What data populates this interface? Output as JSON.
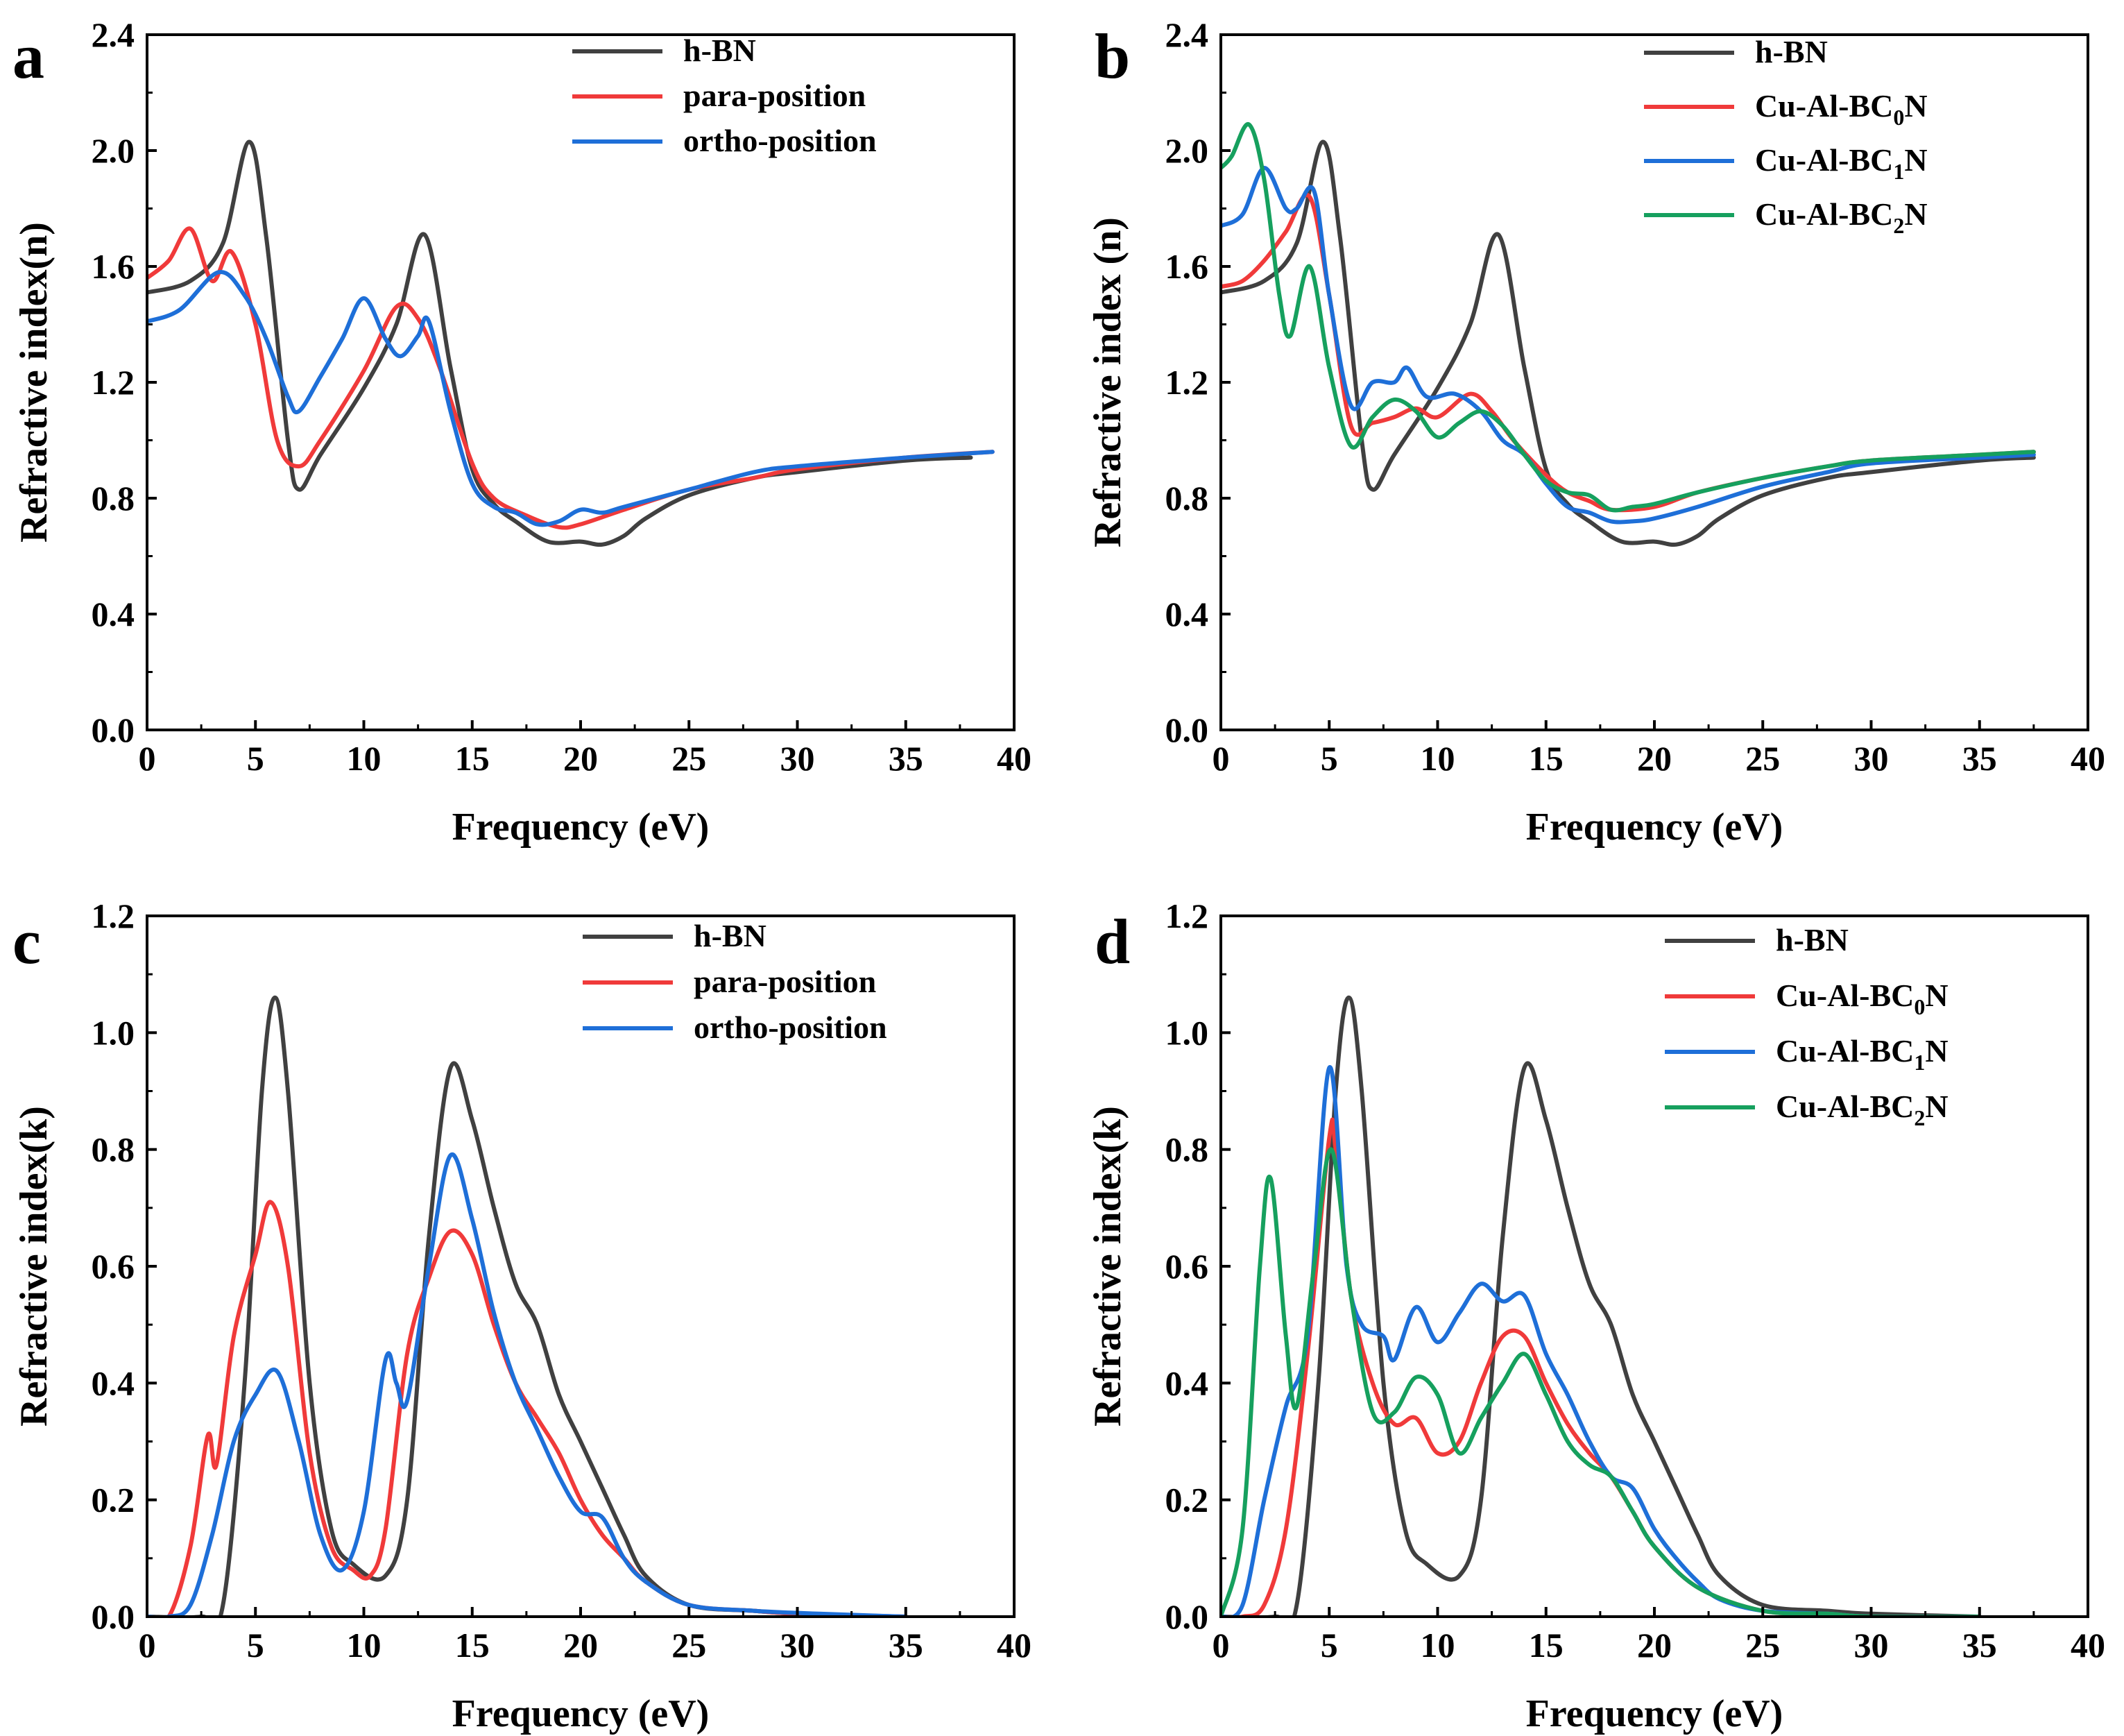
{
  "colors": {
    "hbn": "#404040",
    "red": "#f03a3a",
    "blue": "#1e6fd8",
    "green": "#16a05e"
  },
  "chart_data": [
    {
      "panel": "a",
      "type": "line",
      "xlabel": "Frequency (eV)",
      "ylabel": "Refractive index(n)",
      "xlim": [
        0,
        40
      ],
      "ylim": [
        0,
        2.4
      ],
      "xticks": [
        0,
        5,
        10,
        15,
        20,
        25,
        30,
        35,
        40
      ],
      "yticks": [
        0.0,
        0.4,
        0.8,
        1.2,
        1.6,
        2.0,
        2.4
      ],
      "ytick_labels": [
        "0.0",
        "0.4",
        "0.8",
        "1.2",
        "1.6",
        "2.0",
        "2.4"
      ],
      "legend_position": "top-right",
      "series": [
        {
          "name": "h-BN",
          "color": "#404040",
          "x": [
            0,
            2,
            3.5,
            4.7,
            5.5,
            6.5,
            7,
            8,
            10,
            11.5,
            12.8,
            14,
            15,
            16,
            17,
            18.5,
            20,
            21,
            22,
            23,
            25,
            28,
            30,
            35,
            38
          ],
          "y": [
            1.51,
            1.55,
            1.68,
            2.03,
            1.7,
            1.0,
            0.83,
            0.95,
            1.18,
            1.4,
            1.71,
            1.25,
            0.9,
            0.78,
            0.72,
            0.65,
            0.65,
            0.64,
            0.67,
            0.73,
            0.81,
            0.87,
            0.89,
            0.93,
            0.94
          ]
        },
        {
          "name": "para-position",
          "color": "#f03a3a",
          "x": [
            0,
            1,
            2,
            3,
            3.9,
            5,
            6,
            7,
            8,
            10,
            11.5,
            12.5,
            13.5,
            15,
            16,
            17.5,
            19,
            20,
            22,
            25,
            28,
            30,
            35,
            39
          ],
          "y": [
            1.56,
            1.62,
            1.73,
            1.55,
            1.65,
            1.4,
            1.0,
            0.91,
            1.0,
            1.24,
            1.46,
            1.42,
            1.25,
            0.92,
            0.8,
            0.74,
            0.7,
            0.71,
            0.76,
            0.83,
            0.87,
            0.9,
            0.94,
            0.96
          ]
        },
        {
          "name": "ortho-position",
          "color": "#1e6fd8",
          "x": [
            0,
            1.5,
            3.3,
            4.5,
            5.5,
            6.5,
            7,
            8,
            9,
            10,
            11,
            11.7,
            12.5,
            13,
            14,
            15,
            16,
            17,
            18,
            19,
            20,
            21,
            22,
            25,
            28,
            30,
            35,
            39
          ],
          "y": [
            1.41,
            1.45,
            1.58,
            1.5,
            1.35,
            1.15,
            1.1,
            1.22,
            1.35,
            1.49,
            1.35,
            1.29,
            1.36,
            1.41,
            1.1,
            0.85,
            0.77,
            0.75,
            0.71,
            0.72,
            0.76,
            0.75,
            0.77,
            0.83,
            0.89,
            0.91,
            0.94,
            0.96
          ]
        }
      ]
    },
    {
      "panel": "b",
      "type": "line",
      "xlabel": "Frequency (eV)",
      "ylabel": "Refractive index (n)",
      "xlim": [
        0,
        40
      ],
      "ylim": [
        0,
        2.4
      ],
      "xticks": [
        0,
        5,
        10,
        15,
        20,
        25,
        30,
        35,
        40
      ],
      "yticks": [
        0.0,
        0.4,
        0.8,
        1.2,
        1.6,
        2.0,
        2.4
      ],
      "ytick_labels": [
        "0.0",
        "0.4",
        "0.8",
        "1.2",
        "1.6",
        "2.0",
        "2.4"
      ],
      "legend_position": "top-right",
      "series": [
        {
          "name": "h-BN",
          "color": "#404040",
          "x": [
            0,
            2,
            3.5,
            4.7,
            5.5,
            6.5,
            7,
            8,
            10,
            11.5,
            12.8,
            14,
            15,
            16,
            17,
            18.5,
            20,
            21,
            22,
            23,
            25,
            28,
            30,
            35,
            37.5
          ],
          "y": [
            1.51,
            1.55,
            1.68,
            2.03,
            1.7,
            1.0,
            0.83,
            0.95,
            1.18,
            1.4,
            1.71,
            1.25,
            0.9,
            0.78,
            0.72,
            0.65,
            0.65,
            0.64,
            0.67,
            0.73,
            0.81,
            0.87,
            0.89,
            0.93,
            0.94
          ]
        },
        {
          "name": "Cu-Al-BC₀N",
          "label_main": "Cu-Al-BC",
          "label_sub": "0",
          "label_end": "N",
          "color": "#f03a3a",
          "x": [
            0,
            1,
            2,
            3,
            4.1,
            5,
            6,
            7,
            8,
            9,
            10,
            11.5,
            12.5,
            13.5,
            15,
            16,
            17,
            18,
            20,
            22,
            25,
            28,
            30,
            35,
            37.5
          ],
          "y": [
            1.53,
            1.55,
            1.62,
            1.72,
            1.84,
            1.5,
            1.05,
            1.06,
            1.08,
            1.11,
            1.08,
            1.16,
            1.1,
            1.0,
            0.88,
            0.82,
            0.79,
            0.76,
            0.77,
            0.82,
            0.87,
            0.91,
            0.93,
            0.95,
            0.96
          ]
        },
        {
          "name": "Cu-Al-BC₁N",
          "label_main": "Cu-Al-BC",
          "label_sub": "1",
          "label_end": "N",
          "color": "#1e6fd8",
          "x": [
            0,
            1,
            2,
            3,
            3.5,
            4.3,
            5,
            6,
            7,
            8,
            8.6,
            9.5,
            10.8,
            12,
            13,
            14,
            15,
            16,
            17,
            18,
            19,
            20,
            22,
            25,
            28,
            30,
            35,
            37.5
          ],
          "y": [
            1.74,
            1.78,
            1.94,
            1.8,
            1.8,
            1.86,
            1.5,
            1.12,
            1.2,
            1.2,
            1.25,
            1.15,
            1.16,
            1.1,
            1.0,
            0.95,
            0.85,
            0.77,
            0.75,
            0.72,
            0.72,
            0.73,
            0.77,
            0.84,
            0.89,
            0.92,
            0.94,
            0.95
          ]
        },
        {
          "name": "Cu-Al-BC₂N",
          "label_main": "Cu-Al-BC",
          "label_sub": "2",
          "label_end": "N",
          "color": "#16a05e",
          "x": [
            0,
            0.5,
            1.3,
            2,
            2.7,
            3.2,
            4.1,
            5,
            6,
            7,
            8,
            9,
            10,
            11,
            12,
            13,
            14,
            15,
            16,
            17,
            18,
            19,
            20,
            22,
            25,
            28,
            30,
            35,
            37.5
          ],
          "y": [
            1.94,
            1.98,
            2.09,
            1.9,
            1.5,
            1.36,
            1.6,
            1.25,
            0.98,
            1.08,
            1.14,
            1.1,
            1.01,
            1.06,
            1.1,
            1.05,
            0.95,
            0.86,
            0.82,
            0.81,
            0.76,
            0.77,
            0.78,
            0.82,
            0.87,
            0.91,
            0.93,
            0.95,
            0.96
          ]
        }
      ]
    },
    {
      "panel": "c",
      "type": "line",
      "xlabel": "Frequency (eV)",
      "ylabel": "Refractive index(k)",
      "xlim": [
        0,
        40
      ],
      "ylim": [
        0,
        1.2
      ],
      "xticks": [
        0,
        5,
        10,
        15,
        20,
        25,
        30,
        35,
        40
      ],
      "yticks": [
        0.0,
        0.2,
        0.4,
        0.6,
        0.8,
        1.0,
        1.2
      ],
      "ytick_labels": [
        "0.0",
        "0.2",
        "0.4",
        "0.6",
        "0.8",
        "1.0",
        "1.2"
      ],
      "legend_position": "top-right",
      "series": [
        {
          "name": "h-BN",
          "color": "#404040",
          "x": [
            0,
            2.5,
            3.5,
            4.5,
            5.3,
            5.9,
            6.5,
            7.5,
            8.5,
            9.5,
            11,
            12,
            13,
            14,
            15,
            16,
            17,
            18,
            19,
            20,
            21,
            22,
            23,
            25,
            28,
            30,
            35
          ],
          "y": [
            0,
            0,
            0.02,
            0.4,
            0.9,
            1.06,
            0.9,
            0.4,
            0.15,
            0.09,
            0.07,
            0.2,
            0.65,
            0.94,
            0.85,
            0.7,
            0.57,
            0.5,
            0.38,
            0.3,
            0.22,
            0.14,
            0.07,
            0.02,
            0.01,
            0.005,
            0
          ]
        },
        {
          "name": "para-position",
          "color": "#f03a3a",
          "x": [
            0,
            1,
            2,
            2.8,
            3.2,
            4,
            5,
            5.7,
            6.5,
            7.5,
            8.5,
            9.5,
            10.3,
            11,
            12,
            13,
            14,
            15,
            16,
            17,
            18,
            19,
            20,
            21,
            22,
            23,
            25,
            28,
            30,
            35
          ],
          "y": [
            0,
            0,
            0.12,
            0.31,
            0.26,
            0.48,
            0.62,
            0.71,
            0.6,
            0.28,
            0.12,
            0.08,
            0.07,
            0.15,
            0.45,
            0.58,
            0.66,
            0.62,
            0.5,
            0.4,
            0.34,
            0.28,
            0.2,
            0.14,
            0.1,
            0.06,
            0.02,
            0.01,
            0.005,
            0
          ]
        },
        {
          "name": "ortho-position",
          "color": "#1e6fd8",
          "x": [
            0,
            1,
            2,
            3,
            4,
            5,
            6,
            7,
            8,
            9,
            10,
            11,
            11.5,
            12,
            13,
            14,
            15,
            16,
            17,
            18,
            19,
            20,
            21,
            22,
            23,
            25,
            28,
            31,
            35
          ],
          "y": [
            0,
            0,
            0.02,
            0.14,
            0.3,
            0.38,
            0.42,
            0.3,
            0.14,
            0.08,
            0.18,
            0.44,
            0.4,
            0.37,
            0.6,
            0.79,
            0.68,
            0.52,
            0.4,
            0.32,
            0.24,
            0.18,
            0.17,
            0.1,
            0.06,
            0.02,
            0.01,
            0.005,
            0
          ]
        }
      ]
    },
    {
      "panel": "d",
      "type": "line",
      "xlabel": "Frequency (eV)",
      "ylabel": "Refractive index(k)",
      "xlim": [
        0,
        40
      ],
      "ylim": [
        0,
        1.2
      ],
      "xticks": [
        0,
        5,
        10,
        15,
        20,
        25,
        30,
        35,
        40
      ],
      "yticks": [
        0.0,
        0.2,
        0.4,
        0.6,
        0.8,
        1.0,
        1.2
      ],
      "ytick_labels": [
        "0.0",
        "0.2",
        "0.4",
        "0.6",
        "0.8",
        "1.0",
        "1.2"
      ],
      "legend_position": "top-right",
      "series": [
        {
          "name": "h-BN",
          "color": "#404040",
          "x": [
            0,
            2.5,
            3.5,
            4.5,
            5.3,
            5.9,
            6.5,
            7.5,
            8.5,
            9.5,
            11,
            12,
            13,
            14,
            15,
            16,
            17,
            18,
            19,
            20,
            21,
            22,
            23,
            25,
            28,
            30,
            35
          ],
          "y": [
            0,
            0,
            0.02,
            0.4,
            0.9,
            1.06,
            0.9,
            0.4,
            0.15,
            0.09,
            0.07,
            0.2,
            0.65,
            0.94,
            0.85,
            0.7,
            0.57,
            0.5,
            0.38,
            0.3,
            0.22,
            0.14,
            0.07,
            0.02,
            0.01,
            0.005,
            0
          ]
        },
        {
          "name": "Cu-Al-BC₀N",
          "label_main": "Cu-Al-BC",
          "label_sub": "0",
          "label_end": "N",
          "color": "#f03a3a",
          "x": [
            0,
            1,
            2,
            3,
            4,
            5,
            5.3,
            6,
            7,
            8,
            9,
            10,
            11,
            12,
            13,
            14,
            15,
            16,
            17,
            18,
            19,
            20,
            22,
            25,
            28,
            30,
            35
          ],
          "y": [
            0,
            0,
            0.02,
            0.15,
            0.45,
            0.82,
            0.8,
            0.55,
            0.4,
            0.33,
            0.34,
            0.28,
            0.3,
            0.4,
            0.48,
            0.48,
            0.4,
            0.33,
            0.28,
            0.24,
            0.18,
            0.12,
            0.05,
            0.01,
            0.005,
            0,
            0
          ]
        },
        {
          "name": "Cu-Al-BC₁N",
          "label_main": "Cu-Al-BC",
          "label_sub": "1",
          "label_end": "N",
          "color": "#1e6fd8",
          "x": [
            0,
            1,
            2,
            3,
            4,
            5,
            5.8,
            6.5,
            7.5,
            8,
            9,
            10,
            11,
            12,
            13,
            14,
            15,
            16,
            17,
            18,
            19,
            20,
            21,
            22,
            23,
            25,
            28,
            30,
            35
          ],
          "y": [
            0,
            0.02,
            0.2,
            0.36,
            0.48,
            0.94,
            0.6,
            0.5,
            0.48,
            0.44,
            0.53,
            0.47,
            0.52,
            0.57,
            0.54,
            0.55,
            0.45,
            0.38,
            0.3,
            0.24,
            0.22,
            0.15,
            0.1,
            0.06,
            0.03,
            0.01,
            0.005,
            0,
            0
          ]
        },
        {
          "name": "Cu-Al-BC₂N",
          "label_main": "Cu-Al-BC",
          "label_sub": "2",
          "label_end": "N",
          "color": "#16a05e",
          "x": [
            0,
            1,
            1.8,
            2.3,
            3,
            3.5,
            4.3,
            5.1,
            6,
            7,
            8,
            9,
            10,
            11,
            12,
            13,
            14,
            15,
            16,
            17,
            18,
            19,
            20,
            22,
            25,
            28,
            30,
            35
          ],
          "y": [
            0,
            0.15,
            0.6,
            0.75,
            0.48,
            0.36,
            0.6,
            0.8,
            0.55,
            0.35,
            0.35,
            0.41,
            0.38,
            0.28,
            0.34,
            0.4,
            0.45,
            0.38,
            0.3,
            0.26,
            0.24,
            0.18,
            0.12,
            0.05,
            0.01,
            0.005,
            0,
            0
          ]
        }
      ]
    }
  ]
}
